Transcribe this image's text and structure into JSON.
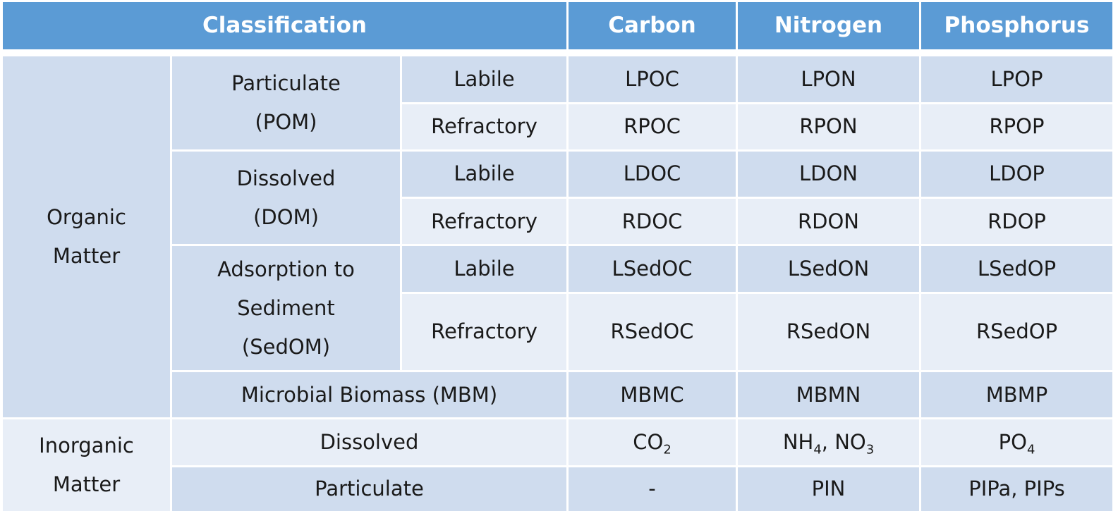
{
  "header": {
    "classification": "Classification",
    "carbon": "Carbon",
    "nitrogen": "Nitrogen",
    "phosphorus": "Phosphorus"
  },
  "organic": {
    "label_line1": "Organic",
    "label_line2": "Matter",
    "pom": {
      "label_line1": "Particulate",
      "label_line2": "(POM)",
      "labile": {
        "label": "Labile",
        "carbon": "LPOC",
        "nitrogen": "LPON",
        "phosphorus": "LPOP"
      },
      "refractory": {
        "label": "Refractory",
        "carbon": "RPOC",
        "nitrogen": "RPON",
        "phosphorus": "RPOP"
      }
    },
    "dom": {
      "label_line1": "Dissolved",
      "label_line2": "(DOM)",
      "labile": {
        "label": "Labile",
        "carbon": "LDOC",
        "nitrogen": "LDON",
        "phosphorus": "LDOP"
      },
      "refractory": {
        "label": "Refractory",
        "carbon": "RDOC",
        "nitrogen": "RDON",
        "phosphorus": "RDOP"
      }
    },
    "sedom": {
      "label_line1": "Adsorption to",
      "label_line2": "Sediment",
      "label_line3": "(SedOM)",
      "labile": {
        "label": "Labile",
        "carbon": "LSedOC",
        "nitrogen": "LSedON",
        "phosphorus": "LSedOP"
      },
      "refractory": {
        "label": "Refractory",
        "carbon": "RSedOC",
        "nitrogen": "RSedON",
        "phosphorus": "RSedOP"
      }
    },
    "mbm": {
      "label": "Microbial Biomass (MBM)",
      "carbon": "MBMC",
      "nitrogen": "MBMN",
      "phosphorus": "MBMP"
    }
  },
  "inorganic": {
    "label_line1": "Inorganic",
    "label_line2": "Matter",
    "dissolved": {
      "label": "Dissolved",
      "carbon": {
        "base": "CO",
        "sub": "2"
      },
      "nitrogen": {
        "a_base": "NH",
        "a_sub": "4",
        "sep": ", ",
        "b_base": "NO",
        "b_sub": "3"
      },
      "phosphorus": {
        "base": "PO",
        "sub": "4"
      }
    },
    "particulate": {
      "label": "Particulate",
      "carbon": "-",
      "nitrogen": "PIN",
      "phosphorus": "PIPa, PIPs"
    }
  }
}
